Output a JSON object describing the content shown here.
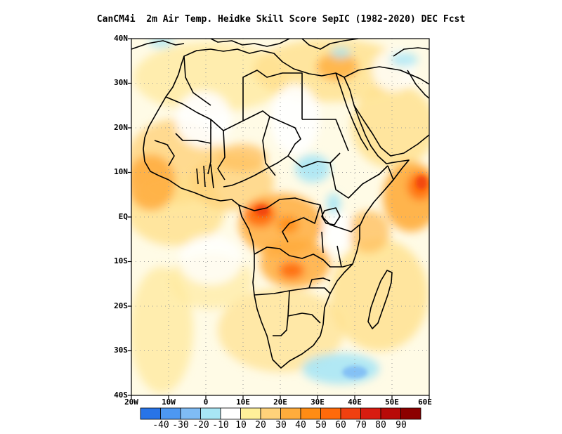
{
  "title": "CanCM4i  2m Air Temp. Heidke Skill Score SepIC (1982-2020) DEC Fcst",
  "map": {
    "extent": {
      "lon": [
        -20,
        60
      ],
      "lat": [
        -40,
        40
      ]
    },
    "grid_lines": "dotted",
    "lat_labels": [
      "40N",
      "30N",
      "20N",
      "10N",
      "EQ",
      "10S",
      "20S",
      "30S",
      "40S"
    ],
    "lon_labels": [
      "20W",
      "10W",
      "0",
      "10E",
      "20E",
      "30E",
      "40E",
      "50E",
      "60E"
    ]
  },
  "colorbar": {
    "colors": [
      "#2874e8",
      "#4d98f2",
      "#7fbcf5",
      "#a8e6f5",
      "#ffffff",
      "#fff09a",
      "#ffd27a",
      "#ffac3c",
      "#ff8c14",
      "#ff6a0a",
      "#f04010",
      "#d81c10",
      "#b80a08",
      "#8c0000"
    ],
    "labels": [
      "-40",
      "-30",
      "-20",
      "-10",
      "10",
      "20",
      "30",
      "40",
      "50",
      "60",
      "70",
      "80",
      "90"
    ]
  }
}
